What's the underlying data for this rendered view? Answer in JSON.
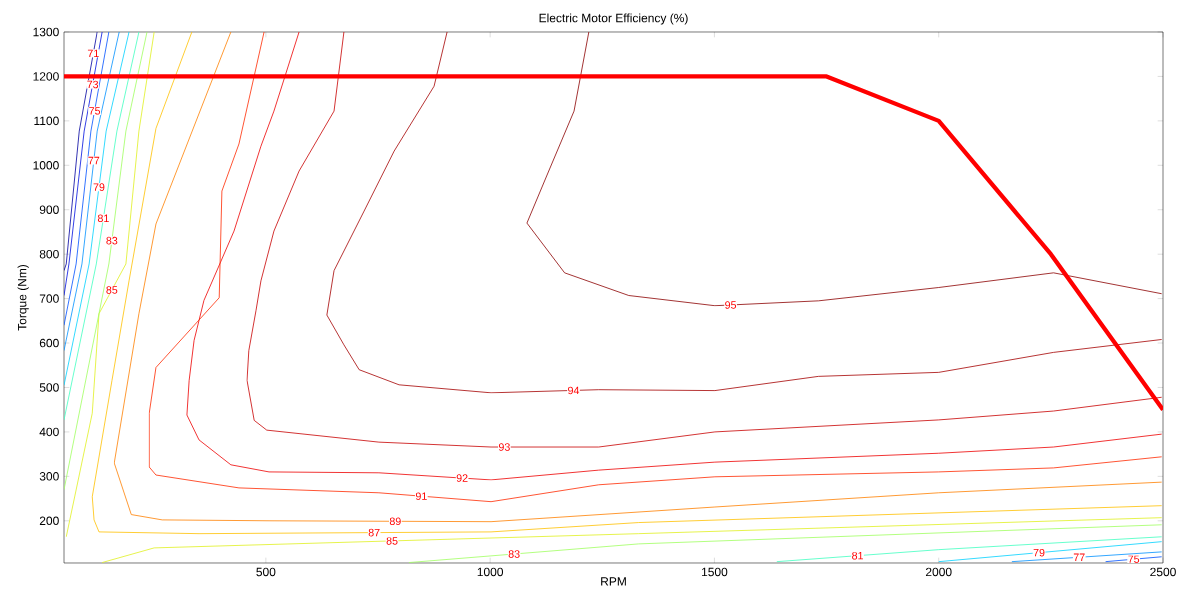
{
  "chart_data": {
    "type": "line",
    "title": "Electric Motor Efficiency (%)",
    "xlabel": "RPM",
    "ylabel": "Torque (Nm)",
    "xlim": [
      50,
      2500
    ],
    "ylim": [
      105,
      1300
    ],
    "xticks": [
      500,
      1000,
      1500,
      2000,
      2500
    ],
    "yticks": [
      200,
      300,
      400,
      500,
      600,
      700,
      800,
      900,
      1000,
      1100,
      1200,
      1300
    ],
    "grid": false,
    "legend": false,
    "line_style": "solid",
    "series": [
      {
        "name": "95",
        "color": "#8b0000",
        "x": [
          1220,
          1187,
          1126,
          1082,
          1166,
          1309,
          1501,
          1732,
          2000,
          2256,
          2497
        ],
        "values": [
          1300,
          1122,
          976,
          870,
          758,
          707,
          684,
          695,
          725,
          758,
          711
        ]
      },
      {
        "name": "94",
        "color": "#a50000",
        "x": [
          904,
          875,
          786,
          719,
          652,
          636,
          674,
          708,
          797,
          1002,
          1242,
          1501,
          1732,
          2000,
          2256,
          2497
        ],
        "values": [
          1300,
          1178,
          1032,
          897,
          763,
          663,
          596,
          540,
          506,
          488,
          495,
          493,
          525,
          534,
          579,
          608
        ]
      },
      {
        "name": "93",
        "color": "#c80000",
        "x": [
          674,
          652,
          574,
          518,
          489,
          478,
          462,
          458,
          474,
          502,
          752,
          1002,
          1242,
          1501,
          2000,
          2256,
          2497
        ],
        "values": [
          1300,
          1122,
          987,
          852,
          740,
          673,
          583,
          516,
          426,
          404,
          377,
          366,
          366,
          400,
          427,
          447,
          478
        ]
      },
      {
        "name": "92",
        "color": "#ee0000",
        "x": [
          574,
          518,
          489,
          429,
          362,
          340,
          329,
          324,
          351,
          422,
          507,
          752,
          1002,
          1242,
          1501,
          2000,
          2256,
          2497
        ],
        "values": [
          1300,
          1122,
          1043,
          852,
          696,
          606,
          516,
          438,
          382,
          326,
          310,
          308,
          292,
          314,
          332,
          352,
          366,
          395
        ]
      },
      {
        "name": "91",
        "color": "#ff2a00",
        "x": [
          496,
          440,
          402,
          396,
          255,
          240,
          240,
          255,
          440,
          752,
          1002,
          1242,
          1501,
          2000,
          2256,
          2497
        ],
        "values": [
          1300,
          1048,
          942,
          702,
          545,
          442,
          321,
          303,
          274,
          263,
          243,
          281,
          299,
          310,
          319,
          344
        ]
      },
      {
        "name": "89",
        "color": "#ff8000",
        "x": [
          422,
          255,
          217,
          162,
          200,
          269,
          507,
          1002,
          1501,
          2000,
          2497
        ],
        "values": [
          1300,
          868,
          666,
          330,
          214,
          202,
          200,
          198,
          231,
          263,
          287
        ]
      },
      {
        "name": "87",
        "color": "#ffc000",
        "x": [
          335,
          255,
          195,
          157,
          113,
          117,
          128,
          351,
          1002,
          1331,
          2497
        ],
        "values": [
          1300,
          1083,
          740,
          516,
          254,
          202,
          175,
          171,
          175,
          196,
          234
        ]
      },
      {
        "name": "85",
        "color": "#e0f020",
        "x": [
          251,
          217,
          188,
          128,
          113,
          55
        ],
        "values": [
          1300,
          1077,
          778,
          666,
          442,
          164
        ]
      },
      {
        "name": "85",
        "color": "#e0f020",
        "x": [
          135,
          251,
          1331,
          2497
        ],
        "values": [
          106,
          139,
          171,
          207
        ]
      },
      {
        "name": "83",
        "color": "#a0ff60",
        "x": [
          235,
          188,
          150,
          50
        ],
        "values": [
          1300,
          1077,
          778,
          270
        ]
      },
      {
        "name": "83",
        "color": "#a0ff60",
        "x": [
          819,
          1331,
          2497
        ],
        "values": [
          106,
          148,
          191
        ]
      },
      {
        "name": "81",
        "color": "#40ffc0",
        "x": [
          217,
          168,
          122,
          50
        ],
        "values": [
          1300,
          1077,
          778,
          427
        ]
      },
      {
        "name": "81",
        "color": "#40ffc0",
        "x": [
          1639,
          2000,
          2497
        ],
        "values": [
          108,
          135,
          164
        ]
      },
      {
        "name": "79",
        "color": "#00d0ff",
        "x": [
          195,
          144,
          106,
          50
        ],
        "values": [
          1300,
          1077,
          778,
          505
        ]
      },
      {
        "name": "79",
        "color": "#00d0ff",
        "x": [
          2000,
          2497
        ],
        "values": [
          108,
          153
        ]
      },
      {
        "name": "77",
        "color": "#0090ff",
        "x": [
          173,
          124,
          90,
          50
        ],
        "values": [
          1300,
          1077,
          778,
          583
        ]
      },
      {
        "name": "77",
        "color": "#0090ff",
        "x": [
          2163,
          2497
        ],
        "values": [
          108,
          130
        ]
      },
      {
        "name": "75",
        "color": "#0050ff",
        "x": [
          150,
          110,
          77,
          50
        ],
        "values": [
          1300,
          1077,
          778,
          640
        ]
      },
      {
        "name": "75",
        "color": "#0050ff",
        "x": [
          2372,
          2497
        ],
        "values": [
          108,
          119
        ]
      },
      {
        "name": "73",
        "color": "#0010e0",
        "x": [
          135,
          95,
          61,
          50
        ],
        "values": [
          1300,
          1077,
          778,
          707
        ]
      },
      {
        "name": "71",
        "color": "#0000a0",
        "x": [
          124,
          84,
          55,
          50
        ],
        "values": [
          1300,
          1077,
          778,
          763
        ]
      },
      {
        "color": "#ff0000",
        "x": [
          50,
          1750,
          2000,
          2250,
          2500
        ],
        "values": [
          1200,
          1200,
          1100,
          800,
          450
        ]
      }
    ]
  }
}
